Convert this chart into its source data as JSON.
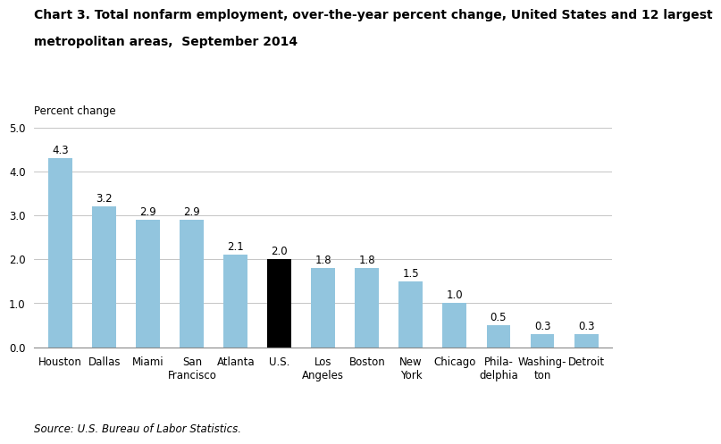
{
  "categories": [
    "Houston",
    "Dallas",
    "Miami",
    "San\nFrancisco",
    "Atlanta",
    "U.S.",
    "Los\nAngeles",
    "Boston",
    "New\nYork",
    "Chicago",
    "Phila-\ndelphia",
    "Washing-\nton",
    "Detroit"
  ],
  "values": [
    4.3,
    3.2,
    2.9,
    2.9,
    2.1,
    2.0,
    1.8,
    1.8,
    1.5,
    1.0,
    0.5,
    0.3,
    0.3
  ],
  "bar_colors": [
    "#92C5DE",
    "#92C5DE",
    "#92C5DE",
    "#92C5DE",
    "#92C5DE",
    "#000000",
    "#92C5DE",
    "#92C5DE",
    "#92C5DE",
    "#92C5DE",
    "#92C5DE",
    "#92C5DE",
    "#92C5DE"
  ],
  "title_line1": "Chart 3. Total nonfarm employment, over-the-year percent change, United States and 12 largest",
  "title_line2": "metropolitan areas,  September 2014",
  "ylabel_text": "Percent change",
  "ylim": [
    0,
    5.0
  ],
  "yticks": [
    0.0,
    1.0,
    2.0,
    3.0,
    4.0,
    5.0
  ],
  "source": "Source: U.S. Bureau of Labor Statistics.",
  "title_fontsize": 10.0,
  "label_fontsize": 8.5,
  "tick_fontsize": 8.5,
  "source_fontsize": 8.5,
  "bar_width": 0.55
}
